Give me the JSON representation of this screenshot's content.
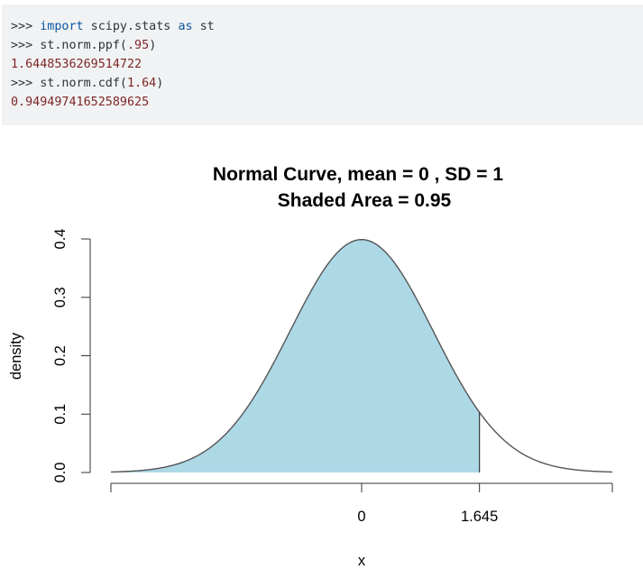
{
  "code": {
    "lines": [
      {
        "prompt": ">>> ",
        "kw": "import",
        "rest": " scipy.stats ",
        "kw2": "as",
        "rest2": " st"
      },
      {
        "prompt": ">>> ",
        "pre": "st.norm.ppf(",
        "num": ".95",
        "post": ")"
      },
      {
        "output": "1.6448536269514722"
      },
      {
        "prompt": ">>> ",
        "pre": "st.norm.cdf(",
        "num": "1.64",
        "post": ")"
      },
      {
        "output": "0.94949741652589625"
      }
    ]
  },
  "chart_data": {
    "type": "area",
    "title": "Normal Curve, mean =  0 , SD =  1",
    "subtitle": "Shaded Area =  0.95",
    "xlabel": "x",
    "ylabel": "density",
    "mean": 0,
    "sd": 1,
    "shaded_area": 0.95,
    "shade_from": -3.5,
    "shade_to": 1.645,
    "xlim": [
      -3.5,
      3.5
    ],
    "ylim": [
      0,
      0.4
    ],
    "x_ticks": [
      {
        "value": 0,
        "label": "0"
      },
      {
        "value": 1.645,
        "label": "1.645"
      }
    ],
    "y_ticks": [
      {
        "value": 0.0,
        "label": "0.0"
      },
      {
        "value": 0.1,
        "label": "0.1"
      },
      {
        "value": 0.2,
        "label": "0.2"
      },
      {
        "value": 0.3,
        "label": "0.3"
      },
      {
        "value": 0.4,
        "label": "0.4"
      }
    ],
    "fill_color": "#add8e6",
    "curve_color": "#555555"
  }
}
